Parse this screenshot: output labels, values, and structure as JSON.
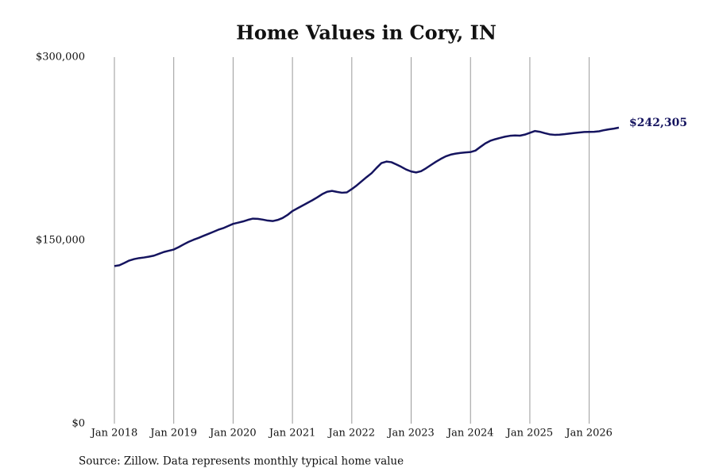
{
  "chart_data": {
    "type": "line",
    "title": "Home Values in Cory, IN",
    "source": "Source: Zillow. Data represents monthly typical home value",
    "x": [
      "2018-01",
      "2018-02",
      "2018-03",
      "2018-04",
      "2018-05",
      "2018-06",
      "2018-07",
      "2018-08",
      "2018-09",
      "2018-10",
      "2018-11",
      "2018-12",
      "2019-01",
      "2019-02",
      "2019-03",
      "2019-04",
      "2019-05",
      "2019-06",
      "2019-07",
      "2019-08",
      "2019-09",
      "2019-10",
      "2019-11",
      "2019-12",
      "2020-01",
      "2020-02",
      "2020-03",
      "2020-04",
      "2020-05",
      "2020-06",
      "2020-07",
      "2020-08",
      "2020-09",
      "2020-10",
      "2020-11",
      "2020-12",
      "2021-01",
      "2021-02",
      "2021-03",
      "2021-04",
      "2021-05",
      "2021-06",
      "2021-07",
      "2021-08",
      "2021-09",
      "2021-10",
      "2021-11",
      "2021-12",
      "2022-01",
      "2022-02",
      "2022-03",
      "2022-04",
      "2022-05",
      "2022-06",
      "2022-07",
      "2022-08",
      "2022-09",
      "2022-10",
      "2022-11",
      "2022-12",
      "2023-01",
      "2023-02",
      "2023-03",
      "2023-04",
      "2023-05",
      "2023-06",
      "2023-07",
      "2023-08",
      "2023-09",
      "2023-10",
      "2023-11",
      "2023-12",
      "2024-01",
      "2024-02",
      "2024-03",
      "2024-04",
      "2024-05",
      "2024-06",
      "2024-07",
      "2024-08",
      "2024-09",
      "2024-10",
      "2024-11",
      "2024-12",
      "2025-01",
      "2025-02",
      "2025-03",
      "2025-04",
      "2025-05",
      "2025-06",
      "2025-07",
      "2025-08",
      "2025-09",
      "2025-10",
      "2025-11",
      "2025-12",
      "2026-01",
      "2026-02",
      "2026-03",
      "2026-04",
      "2026-05",
      "2026-06",
      "2026-07"
    ],
    "values": [
      129000,
      129600,
      131500,
      133500,
      134700,
      135500,
      136000,
      136700,
      137500,
      139000,
      140500,
      141500,
      142500,
      144500,
      146700,
      148800,
      150500,
      152000,
      153700,
      155300,
      157000,
      158700,
      160000,
      161800,
      163500,
      164500,
      165500,
      166800,
      167800,
      167600,
      167000,
      166200,
      165800,
      166700,
      168300,
      170800,
      174000,
      176200,
      178400,
      180600,
      182800,
      185200,
      187800,
      189800,
      190500,
      189700,
      189000,
      189300,
      192000,
      195000,
      198400,
      201800,
      205000,
      209300,
      213300,
      214500,
      214000,
      212200,
      210200,
      208000,
      206400,
      205600,
      206600,
      209000,
      211700,
      214300,
      216700,
      218800,
      220200,
      221000,
      221600,
      222000,
      222300,
      223500,
      226500,
      229400,
      231500,
      232800,
      233900,
      234900,
      235600,
      235900,
      235700,
      236600,
      238000,
      239500,
      238900,
      237800,
      236800,
      236400,
      236500,
      236900,
      237400,
      237900,
      238300,
      238700,
      238800,
      238900,
      239300,
      240200,
      240900,
      241500,
      242305
    ],
    "value_labels": [
      null,
      null,
      null,
      null,
      null,
      null,
      null,
      null,
      null,
      null,
      null,
      null,
      null,
      null,
      null,
      null,
      null,
      null,
      null,
      null,
      null,
      null,
      null,
      null,
      null,
      null,
      null,
      null,
      null,
      null,
      null,
      null,
      null,
      null,
      null,
      null,
      null,
      null,
      null,
      null,
      null,
      null,
      null,
      null,
      null,
      null,
      null,
      null,
      null,
      null,
      null,
      null,
      null,
      null,
      null,
      null,
      null,
      null,
      null,
      null,
      null,
      null,
      null,
      null,
      null,
      null,
      null,
      null,
      null,
      null,
      null,
      null,
      null,
      null,
      null,
      null,
      null,
      null,
      null,
      null,
      null,
      null,
      null,
      null,
      null,
      null,
      null,
      null,
      null,
      null,
      null,
      null,
      null,
      null,
      null,
      null,
      null,
      null,
      null,
      null,
      null,
      null,
      "$242,305"
    ],
    "color": "#15145f",
    "xlim": [
      "2018-01",
      "2026-07"
    ],
    "xticks": [
      {
        "value": "2018-01",
        "label": "Jan 2018"
      },
      {
        "value": "2019-01",
        "label": "Jan 2019"
      },
      {
        "value": "2020-01",
        "label": "Jan 2020"
      },
      {
        "value": "2021-01",
        "label": "Jan 2021"
      },
      {
        "value": "2022-01",
        "label": "Jan 2022"
      },
      {
        "value": "2023-01",
        "label": "Jan 2023"
      },
      {
        "value": "2024-01",
        "label": "Jan 2024"
      },
      {
        "value": "2025-01",
        "label": "Jan 2025"
      },
      {
        "value": "2026-01",
        "label": "Jan 2026"
      }
    ],
    "ylim": [
      0,
      300000
    ],
    "yticks": [
      {
        "value": 0,
        "label": "$0"
      },
      {
        "value": 150000,
        "label": "$150,000"
      },
      {
        "value": 300000,
        "label": "$300,000"
      }
    ],
    "grid": "x"
  }
}
